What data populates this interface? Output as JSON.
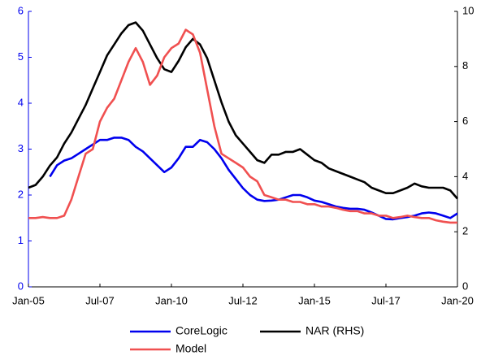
{
  "chart_data": {
    "type": "line",
    "x": [
      "2005-01",
      "2005-04",
      "2005-07",
      "2005-10",
      "2006-01",
      "2006-04",
      "2006-07",
      "2006-10",
      "2007-01",
      "2007-04",
      "2007-07",
      "2007-10",
      "2008-01",
      "2008-04",
      "2008-07",
      "2008-10",
      "2009-01",
      "2009-04",
      "2009-07",
      "2009-10",
      "2010-01",
      "2010-04",
      "2010-07",
      "2010-10",
      "2011-01",
      "2011-04",
      "2011-07",
      "2011-10",
      "2012-01",
      "2012-04",
      "2012-07",
      "2012-10",
      "2013-01",
      "2013-04",
      "2013-07",
      "2013-10",
      "2014-01",
      "2014-04",
      "2014-07",
      "2014-10",
      "2015-01",
      "2015-04",
      "2015-07",
      "2015-10",
      "2016-01",
      "2016-04",
      "2016-07",
      "2016-10",
      "2017-01",
      "2017-04",
      "2017-07",
      "2017-10",
      "2018-01",
      "2018-04",
      "2018-07",
      "2018-10",
      "2019-01",
      "2019-04",
      "2019-07",
      "2019-10",
      "2020-01"
    ],
    "xlim": [
      "2005-01",
      "2020-01"
    ],
    "xticks": [
      {
        "value": "2005-01",
        "label": "Jan-05"
      },
      {
        "value": "2007-07",
        "label": "Jul-07"
      },
      {
        "value": "2010-01",
        "label": "Jan-10"
      },
      {
        "value": "2012-07",
        "label": "Jul-12"
      },
      {
        "value": "2015-01",
        "label": "Jan-15"
      },
      {
        "value": "2017-07",
        "label": "Jul-17"
      },
      {
        "value": "2020-01",
        "label": "Jan-20"
      }
    ],
    "ylim": [
      0,
      6
    ],
    "yticks": [
      0,
      1,
      2,
      3,
      4,
      5,
      6
    ],
    "y2lim": [
      0,
      10
    ],
    "y2ticks": [
      0,
      2,
      4,
      6,
      8,
      10
    ],
    "y_color": "#0000ee",
    "series": [
      {
        "name": "CoreLogic",
        "color": "#0000ee",
        "values": [
          null,
          null,
          null,
          2.4,
          2.65,
          2.75,
          2.8,
          2.9,
          3.0,
          3.1,
          3.2,
          3.2,
          3.25,
          3.25,
          3.2,
          3.05,
          2.95,
          2.8,
          2.65,
          2.5,
          2.6,
          2.8,
          3.05,
          3.05,
          3.2,
          3.15,
          3.0,
          2.8,
          2.55,
          2.35,
          2.15,
          2.0,
          1.9,
          1.87,
          1.88,
          1.9,
          1.95,
          2.0,
          2.0,
          1.95,
          1.88,
          1.85,
          1.8,
          1.75,
          1.72,
          1.7,
          1.7,
          1.68,
          1.62,
          1.55,
          1.48,
          1.47,
          1.5,
          1.52,
          1.55,
          1.6,
          1.62,
          1.6,
          1.55,
          1.5,
          1.6
        ]
      },
      {
        "name": "NAR (RHS)",
        "color": "#000000",
        "axis": "y2",
        "values": [
          3.6,
          3.7,
          4.0,
          4.4,
          4.7,
          5.2,
          5.6,
          6.1,
          6.6,
          7.2,
          7.8,
          8.4,
          8.8,
          9.2,
          9.5,
          9.6,
          9.3,
          8.8,
          8.3,
          7.9,
          7.8,
          8.2,
          8.7,
          9.0,
          8.8,
          8.3,
          7.5,
          6.7,
          6.0,
          5.5,
          5.2,
          4.9,
          4.6,
          4.5,
          4.8,
          4.8,
          4.9,
          4.9,
          5.0,
          4.8,
          4.6,
          4.5,
          4.3,
          4.2,
          4.1,
          4.0,
          3.9,
          3.8,
          3.6,
          3.5,
          3.4,
          3.4,
          3.5,
          3.6,
          3.75,
          3.65,
          3.6,
          3.6,
          3.6,
          3.5,
          3.2
        ]
      },
      {
        "name": "Model",
        "color": "#f05050",
        "values": [
          1.5,
          1.5,
          1.52,
          1.5,
          1.5,
          1.55,
          1.9,
          2.4,
          2.9,
          3.0,
          3.6,
          3.9,
          4.1,
          4.5,
          4.9,
          5.2,
          4.9,
          4.4,
          4.6,
          5.0,
          5.2,
          5.3,
          5.6,
          5.5,
          5.1,
          4.3,
          3.5,
          2.9,
          2.8,
          2.7,
          2.6,
          2.4,
          2.3,
          2.0,
          1.95,
          1.9,
          1.9,
          1.85,
          1.85,
          1.8,
          1.8,
          1.75,
          1.75,
          1.72,
          1.68,
          1.65,
          1.65,
          1.6,
          1.6,
          1.55,
          1.55,
          1.5,
          1.52,
          1.55,
          1.52,
          1.5,
          1.5,
          1.45,
          1.42,
          1.4,
          1.4
        ]
      }
    ]
  }
}
